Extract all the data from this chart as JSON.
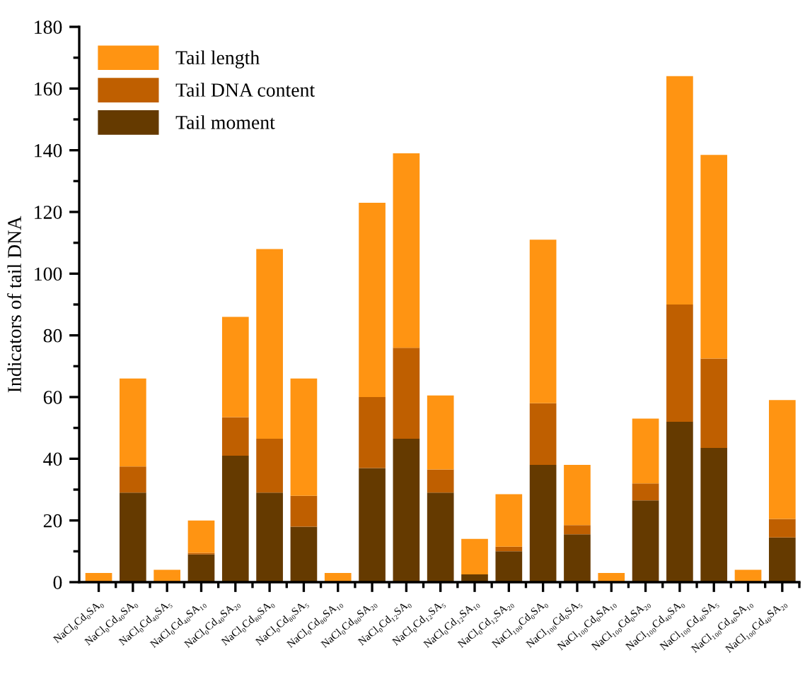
{
  "chart_data": {
    "type": "bar",
    "stacked": true,
    "ylabel": "Indicators of tail DNA",
    "categories": [
      "NaCl₀Cd₀SA₀",
      "NaCl₀Cd₄₀SA₀",
      "NaCl₀Cd₄₀SA₅",
      "NaCl₀Cd₄₀SA₁₀",
      "NaCl₀Cd₄₀SA₂₀",
      "NaCl₀Cd₈₀SA₀",
      "NaCl₀Cd₈₀SA₅",
      "NaCl₀Cd₈₀SA₁₀",
      "NaCl₀Cd₈₀SA₂₀",
      "NaCl₀Cd₁₂SA₀",
      "NaCl₀Cd₁₂SA₅",
      "NaCl₀Cd₁₂SA₁₀",
      "NaCl₀Cd₁₂SA₂₀",
      "NaCl₁₀₀Cd₀SA₀",
      "NaCl₁₀₀Cd₀SA₅",
      "NaCl₁₀₀Cd₀SA₁₀",
      "NaCl₁₀₀Cd₀SA₂₀",
      "NaCl₁₀₀Cd₄₀SA₀",
      "NaCl₁₀₀Cd₄₀SA₅",
      "NaCl₁₀₀Cd₄₀SA₁₀",
      "NaCl₁₀₀Cd₄₀SA₂₀"
    ],
    "series": [
      {
        "name": "Tail moment",
        "color": "#653a00",
        "values": [
          0,
          29,
          0,
          9,
          41,
          29,
          18,
          0,
          37,
          46.5,
          29,
          2.5,
          10,
          38,
          15.5,
          0,
          26.5,
          52,
          43.5,
          0,
          14.5
        ]
      },
      {
        "name": "Tail DNA content",
        "color": "#bf5f00",
        "values": [
          0,
          8.5,
          0,
          0.5,
          12.5,
          17.5,
          10,
          0,
          23,
          29.5,
          7.5,
          0,
          1.5,
          20,
          3,
          0,
          5.5,
          38,
          29,
          0,
          6
        ]
      },
      {
        "name": "Tail length",
        "color": "#ff9412",
        "values": [
          3,
          28.5,
          4,
          10.5,
          32.5,
          61.5,
          38,
          3,
          63,
          63,
          24,
          11.5,
          17,
          53,
          19.5,
          3,
          21,
          74,
          66,
          4,
          38.5
        ]
      }
    ],
    "ylim": [
      0,
      180
    ],
    "yticks": [
      0,
      20,
      40,
      60,
      80,
      100,
      120,
      140,
      160,
      180
    ],
    "legend": "top left",
    "grid": false
  }
}
